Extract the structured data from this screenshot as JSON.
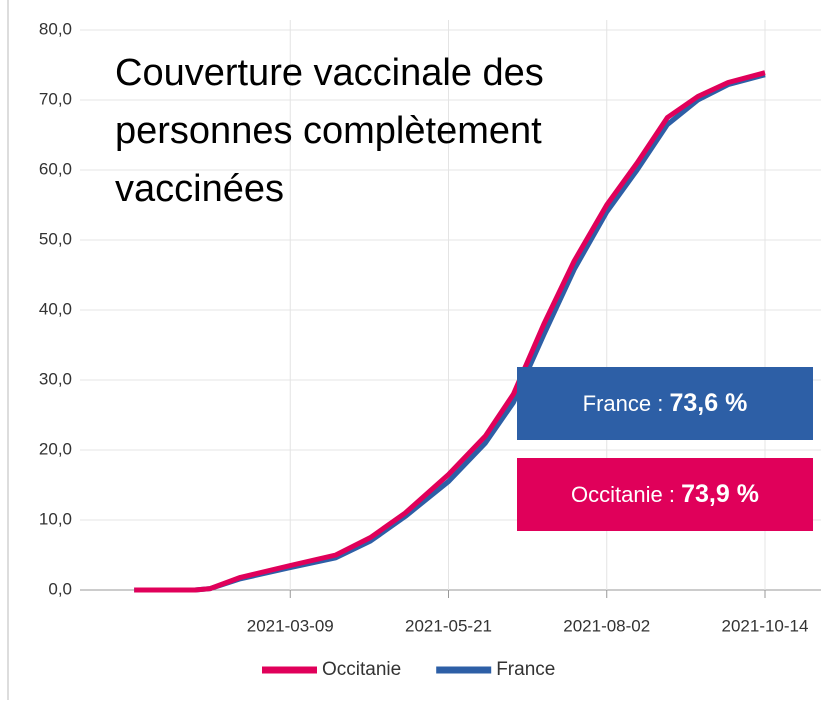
{
  "chart_data": {
    "type": "line",
    "title": "Couverture vaccinale des personnes complètement vaccinées",
    "x": [
      "2020-12-27",
      "2021-01-24",
      "2021-01-31",
      "2021-02-14",
      "2021-03-09",
      "2021-03-30",
      "2021-04-15",
      "2021-05-01",
      "2021-05-21",
      "2021-06-07",
      "2021-06-20",
      "2021-07-04",
      "2021-07-18",
      "2021-08-02",
      "2021-08-16",
      "2021-08-30",
      "2021-09-13",
      "2021-09-27",
      "2021-10-14"
    ],
    "series": [
      {
        "name": "Occitanie",
        "color": "#e0005a",
        "values": [
          0,
          0,
          0.2,
          1.8,
          3.5,
          5,
          7.5,
          11,
          16.5,
          22,
          28,
          38,
          47,
          55,
          61,
          67.5,
          70.5,
          72.5,
          73.9
        ]
      },
      {
        "name": "France",
        "color": "#2d5fa6",
        "values": [
          0,
          0,
          0.2,
          1.6,
          3.2,
          4.6,
          7,
          10.5,
          15.5,
          21,
          26.8,
          36.5,
          45.8,
          54,
          60,
          66.5,
          70,
          72.2,
          73.6
        ]
      }
    ],
    "xlim": [
      "2020-12-02",
      "2021-10-26"
    ],
    "xticks": [
      "2021-03-09",
      "2021-05-21",
      "2021-08-02",
      "2021-10-14"
    ],
    "ylim": [
      0,
      80
    ],
    "yticks": [
      {
        "value": 0,
        "label": "0,0"
      },
      {
        "value": 10,
        "label": "10,0"
      },
      {
        "value": 20,
        "label": "20,0"
      },
      {
        "value": 30,
        "label": "30,0"
      },
      {
        "value": 40,
        "label": "40,0"
      },
      {
        "value": 50,
        "label": "50,0"
      },
      {
        "value": 60,
        "label": "60,0"
      },
      {
        "value": 70,
        "label": "70,0"
      },
      {
        "value": 80,
        "label": "80,0"
      }
    ],
    "grid": true,
    "legend": "bottom",
    "tooltip": {
      "separator": " : ",
      "entries": [
        {
          "series": 1,
          "label": "73,6 %"
        },
        {
          "series": 0,
          "label": "73,9 %"
        }
      ]
    }
  }
}
